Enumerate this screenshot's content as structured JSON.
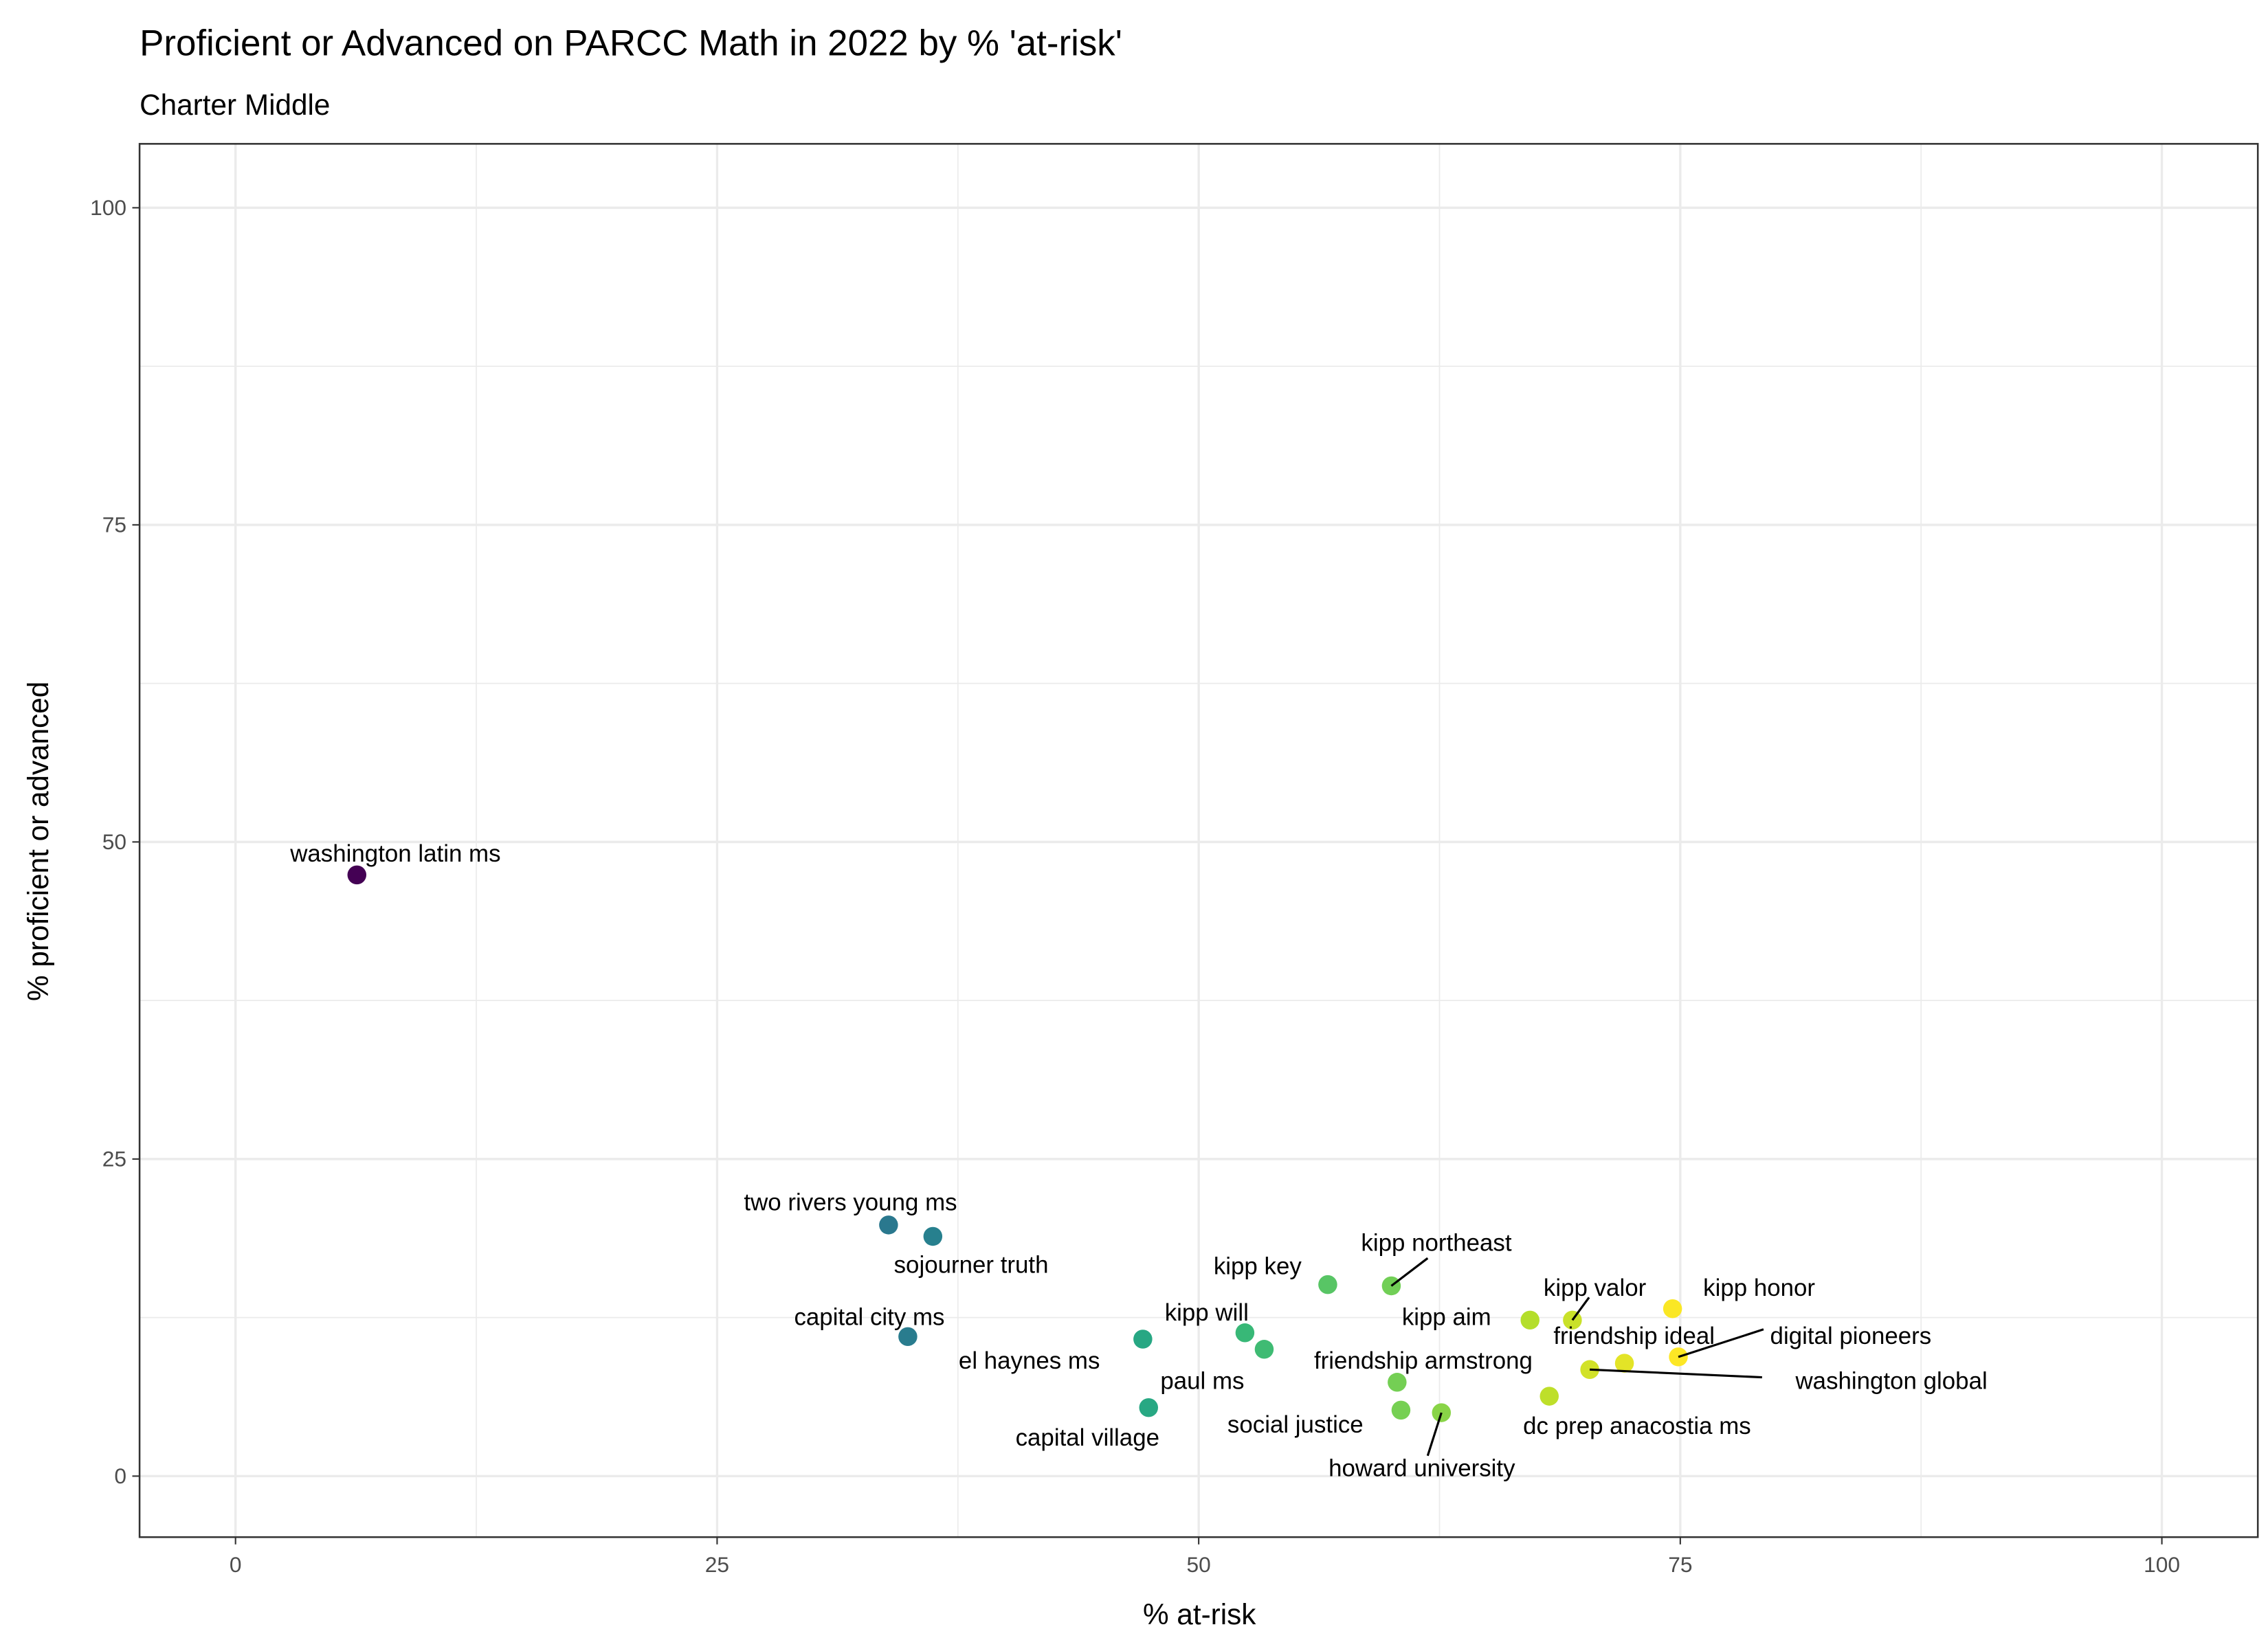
{
  "chart_data": {
    "type": "scatter",
    "title": "Proficient or Advanced on PARCC Math in 2022 by % 'at-risk'",
    "subtitle": "Charter Middle",
    "xlabel": "% at-risk",
    "ylabel": "% proficient or advanced",
    "xlim": [
      -5,
      105
    ],
    "ylim": [
      -5,
      105
    ],
    "xticks": [
      "0",
      "25",
      "50",
      "75",
      "100"
    ],
    "yticks": [
      "0",
      "25",
      "50",
      "75",
      "100"
    ],
    "grid": true,
    "color_scale": "viridis by % at-risk",
    "points": [
      {
        "name": "washington latin ms",
        "x": 6.3,
        "y": 47.4
      },
      {
        "name": "two rivers young ms",
        "x": 33.9,
        "y": 19.8
      },
      {
        "name": "sojourner truth",
        "x": 36.2,
        "y": 18.9
      },
      {
        "name": "capital city ms",
        "x": 34.9,
        "y": 11.0
      },
      {
        "name": "el haynes ms",
        "x": 47.1,
        "y": 10.8
      },
      {
        "name": "kipp will",
        "x": 52.4,
        "y": 11.3
      },
      {
        "name": "paul ms",
        "x": 53.4,
        "y": 10.0
      },
      {
        "name": "capital village",
        "x": 47.4,
        "y": 5.4
      },
      {
        "name": "kipp key",
        "x": 56.7,
        "y": 15.1
      },
      {
        "name": "kipp northeast",
        "x": 60.0,
        "y": 15.0
      },
      {
        "name": "friendship armstrong",
        "x": 60.3,
        "y": 7.4
      },
      {
        "name": "social justice",
        "x": 60.5,
        "y": 5.2
      },
      {
        "name": "howard university",
        "x": 62.6,
        "y": 5.0
      },
      {
        "name": "kipp aim",
        "x": 67.2,
        "y": 12.3
      },
      {
        "name": "kipp valor",
        "x": 69.4,
        "y": 12.3
      },
      {
        "name": "kipp honor",
        "x": 74.6,
        "y": 13.2
      },
      {
        "name": "friendship ideal",
        "x": 72.1,
        "y": 8.9
      },
      {
        "name": "digital pioneers",
        "x": 74.9,
        "y": 9.4
      },
      {
        "name": "washington global",
        "x": 70.3,
        "y": 8.4
      },
      {
        "name": "dc prep anacostia ms",
        "x": 68.2,
        "y": 6.3
      }
    ]
  }
}
